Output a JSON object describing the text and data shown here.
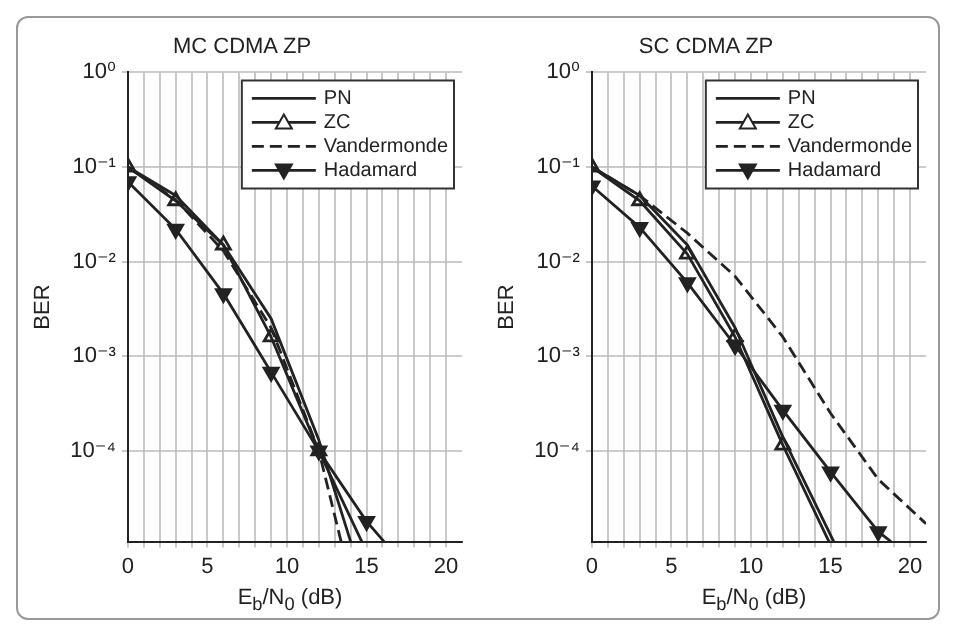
{
  "chart_data": [
    {
      "type": "line",
      "title": "MC CDMA ZP",
      "xlabel": "E$_{b}$/N$_{0}$ (dB)",
      "ylabel": "BER",
      "log": "y",
      "grid": true,
      "legend": "top right",
      "xlim": [
        0,
        21
      ],
      "xticks": [
        0,
        {
          "value": 1,
          "label": null
        },
        {
          "value": 2,
          "label": null
        },
        {
          "value": 3,
          "label": null
        },
        {
          "value": 4,
          "label": null
        },
        5,
        {
          "value": 6,
          "label": null
        },
        {
          "value": 7,
          "label": null
        },
        {
          "value": 8,
          "label": null
        },
        {
          "value": 9,
          "label": null
        },
        10,
        {
          "value": 11,
          "label": null
        },
        {
          "value": 12,
          "label": null
        },
        {
          "value": 13,
          "label": null
        },
        {
          "value": 14,
          "label": null
        },
        15,
        {
          "value": 16,
          "label": null
        },
        {
          "value": 17,
          "label": null
        },
        {
          "value": 18,
          "label": null
        },
        {
          "value": 19,
          "label": null
        },
        20
      ],
      "ylim": [
        1.1e-05,
        1
      ],
      "yticks": [
        {
          "value": 0.0001,
          "label": "10⁻⁴"
        },
        {
          "value": 0.001,
          "label": "10⁻³"
        },
        {
          "value": 0.01,
          "label": "10⁻²"
        },
        {
          "value": 0.1,
          "label": "10⁻¹"
        },
        {
          "value": 1,
          "label": "10⁰"
        }
      ],
      "series": [
        {
          "name": "PN",
          "color": "#222222",
          "marker": "none",
          "line_style": "solid",
          "x": [
            0,
            3,
            6,
            9,
            12,
            14
          ],
          "values": [
            0.1,
            0.05,
            0.015,
            0.0025,
            0.00013,
            1.1e-05
          ]
        },
        {
          "name": "ZC",
          "color": "#222222",
          "marker": "triangle",
          "line_style": "solid",
          "x": [
            0,
            3,
            6,
            9,
            12,
            14.7
          ],
          "values": [
            0.1,
            0.044,
            0.015,
            0.0016,
            0.0001,
            1.1e-05
          ]
        },
        {
          "name": "Vandermonde",
          "color": "#222222",
          "marker": "none",
          "line_style": "dashed",
          "x": [
            0,
            3,
            6,
            9,
            12,
            13.4
          ],
          "values": [
            0.1,
            0.045,
            0.013,
            0.002,
            0.0001,
            1.1e-05
          ]
        },
        {
          "name": "Hadamard",
          "color": "#222222",
          "marker": "triangle-down",
          "line_style": "solid",
          "x": [
            0,
            3,
            6,
            9,
            12,
            15,
            16.1
          ],
          "values": [
            0.07,
            0.022,
            0.0046,
            0.00068,
            0.0001,
            1.8e-05,
            1.1e-05
          ]
        }
      ]
    },
    {
      "type": "line",
      "title": "SC CDMA ZP",
      "xlabel": "E$_{b}$/N$_{0}$ (dB)",
      "ylabel": "BER",
      "log": "y",
      "grid": true,
      "legend": "top right",
      "xlim": [
        0,
        21
      ],
      "xticks": [
        0,
        {
          "value": 1,
          "label": null
        },
        {
          "value": 2,
          "label": null
        },
        {
          "value": 3,
          "label": null
        },
        {
          "value": 4,
          "label": null
        },
        5,
        {
          "value": 6,
          "label": null
        },
        {
          "value": 7,
          "label": null
        },
        {
          "value": 8,
          "label": null
        },
        {
          "value": 9,
          "label": null
        },
        10,
        {
          "value": 11,
          "label": null
        },
        {
          "value": 12,
          "label": null
        },
        {
          "value": 13,
          "label": null
        },
        {
          "value": 14,
          "label": null
        },
        15,
        {
          "value": 16,
          "label": null
        },
        {
          "value": 17,
          "label": null
        },
        {
          "value": 18,
          "label": null
        },
        {
          "value": 19,
          "label": null
        },
        20
      ],
      "ylim": [
        1.1e-05,
        1
      ],
      "yticks": [
        {
          "value": 0.0001,
          "label": "10⁻⁴"
        },
        {
          "value": 0.001,
          "label": "10⁻³"
        },
        {
          "value": 0.01,
          "label": "10⁻²"
        },
        {
          "value": 0.1,
          "label": "10⁻¹"
        },
        {
          "value": 1,
          "label": "10⁰"
        }
      ],
      "series": [
        {
          "name": "PN",
          "color": "#222222",
          "marker": "none",
          "line_style": "solid",
          "x": [
            0,
            3,
            6,
            9,
            12,
            15.2
          ],
          "values": [
            0.1,
            0.05,
            0.015,
            0.002,
            0.00014,
            1.1e-05
          ]
        },
        {
          "name": "ZC",
          "color": "#222222",
          "marker": "triangle",
          "line_style": "solid",
          "x": [
            0,
            3,
            6,
            9,
            12,
            14.9
          ],
          "values": [
            0.1,
            0.044,
            0.012,
            0.0016,
            0.000115,
            1.1e-05
          ]
        },
        {
          "name": "Vandermonde",
          "color": "#222222",
          "marker": "none",
          "line_style": "dashed",
          "x": [
            0,
            3,
            6,
            9,
            12,
            15,
            18,
            21
          ],
          "values": [
            0.1,
            0.05,
            0.02,
            0.007,
            0.0016,
            0.00025,
            5e-05,
            1.7e-05
          ]
        },
        {
          "name": "Hadamard",
          "color": "#222222",
          "marker": "triangle-down",
          "line_style": "solid",
          "x": [
            0,
            3,
            6,
            9,
            12,
            15,
            18,
            18.8
          ],
          "values": [
            0.063,
            0.023,
            0.006,
            0.0013,
            0.00027,
            6e-05,
            1.4e-05,
            1.1e-05
          ]
        }
      ]
    }
  ]
}
